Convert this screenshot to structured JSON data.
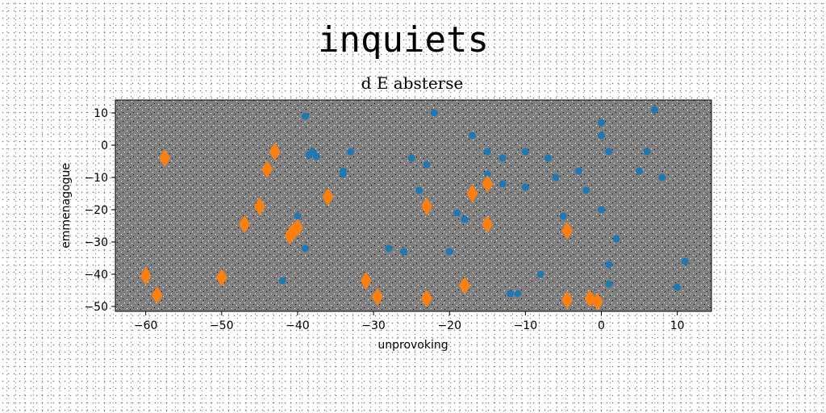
{
  "chart_data": {
    "type": "scatter",
    "title": "inquiets",
    "subtitle": "d E absterse",
    "xlabel": "unprovoking",
    "ylabel": "emmenagogue",
    "xlim": [
      -64,
      14.5
    ],
    "ylim": [
      -51.5,
      14
    ],
    "xticks": [
      -60,
      -50,
      -40,
      -30,
      -20,
      -10,
      0,
      10
    ],
    "yticks": [
      10,
      0,
      -10,
      -20,
      -30,
      -40,
      -50
    ],
    "plot_background": "#808080",
    "grid": false,
    "legend": "none",
    "series": [
      {
        "color": "#1f77b4",
        "marker": "circle",
        "points": [
          [
            -39,
            9
          ],
          [
            -38.5,
            -3
          ],
          [
            -38,
            -2
          ],
          [
            -37.5,
            -3.5
          ],
          [
            -33,
            -2
          ],
          [
            -34,
            -8
          ],
          [
            -34,
            -9
          ],
          [
            -42,
            -42
          ],
          [
            -39,
            -32
          ],
          [
            -40,
            -22
          ],
          [
            -22,
            10
          ],
          [
            -17,
            3
          ],
          [
            -25,
            -4
          ],
          [
            -23,
            -6
          ],
          [
            -24,
            -14
          ],
          [
            -28,
            -32
          ],
          [
            -26,
            -33
          ],
          [
            -20,
            -33
          ],
          [
            -19,
            -21
          ],
          [
            -18,
            -23
          ],
          [
            -15,
            -2
          ],
          [
            -13,
            -4
          ],
          [
            -15,
            -9
          ],
          [
            -13,
            -12
          ],
          [
            -10,
            -2
          ],
          [
            -10,
            -13
          ],
          [
            -7,
            -4
          ],
          [
            -6,
            -10
          ],
          [
            -8,
            -40
          ],
          [
            -12,
            -46
          ],
          [
            -11,
            -46
          ],
          [
            -5,
            -22
          ],
          [
            -3,
            -8
          ],
          [
            -2,
            -14
          ],
          [
            0,
            7
          ],
          [
            0,
            3
          ],
          [
            1,
            -2
          ],
          [
            0,
            -20
          ],
          [
            1,
            -37
          ],
          [
            1,
            -43
          ],
          [
            2,
            -29
          ],
          [
            5,
            -8
          ],
          [
            6,
            -2
          ],
          [
            7,
            11
          ],
          [
            8,
            -10
          ],
          [
            10,
            -44
          ],
          [
            11,
            -36
          ]
        ]
      },
      {
        "color": "#ff7f0e",
        "marker": "thin_diamond",
        "points": [
          [
            -57.5,
            -4
          ],
          [
            -60,
            -40.5
          ],
          [
            -58.5,
            -46.5
          ],
          [
            -50,
            -41
          ],
          [
            -47,
            -24.5
          ],
          [
            -45,
            -19
          ],
          [
            -44,
            -7.5
          ],
          [
            -43,
            -2
          ],
          [
            -41,
            -28
          ],
          [
            -40,
            -25.5
          ],
          [
            -40.5,
            -26.5
          ],
          [
            -36,
            -16
          ],
          [
            -31,
            -42
          ],
          [
            -29.5,
            -47
          ],
          [
            -23,
            -19
          ],
          [
            -23,
            -47.5
          ],
          [
            -18,
            -43.5
          ],
          [
            -17,
            -15
          ],
          [
            -15,
            -12
          ],
          [
            -15,
            -24.5
          ],
          [
            -4.5,
            -26.5
          ],
          [
            -4.5,
            -48
          ],
          [
            -1.5,
            -47.5
          ],
          [
            -0.5,
            -48.5
          ]
        ]
      }
    ]
  }
}
